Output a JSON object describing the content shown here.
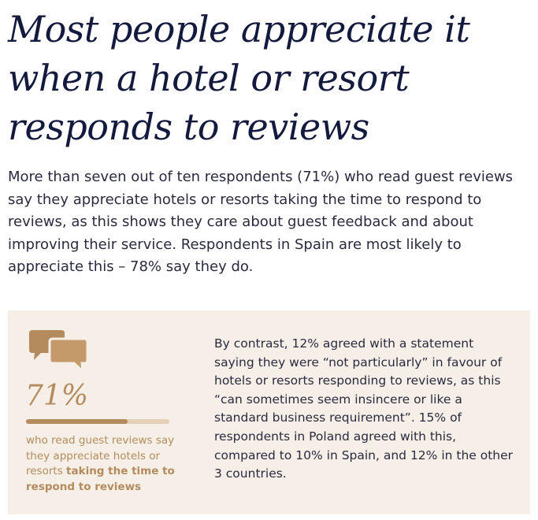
{
  "headline": "Most people appreciate it when a hotel or resort responds to reviews",
  "intro_paragraph": "More than seven out of ten respondents (71%) who read guest reviews say they appreciate hotels or resorts taking the time to respond to reviews, as this shows they care about guest feedback and about improving their service. Respondents in Spain are most likely to appreciate this – 78% say they do.",
  "stat": {
    "icon": "speech-bubbles-icon",
    "value": "71%",
    "percent": 71,
    "caption_plain": "who read guest reviews say they appreciate hotels or resorts ",
    "caption_bold": "taking the time to respond to reviews"
  },
  "contrast_text": "By contrast, 12% agreed with a statement saying they were “not particularly” in favour of hotels or resorts responding to reviews, as this “can sometimes seem insincere or like a standard business requirement”. 15% of respondents in Poland agreed with this, compared to 10% in Spain, and 12% in the other 3 countries.",
  "colors": {
    "headline": "#141a3e",
    "accent": "#b38b5d",
    "panel_background": "#f6efe7",
    "bar_track": "#e4d0b6"
  }
}
